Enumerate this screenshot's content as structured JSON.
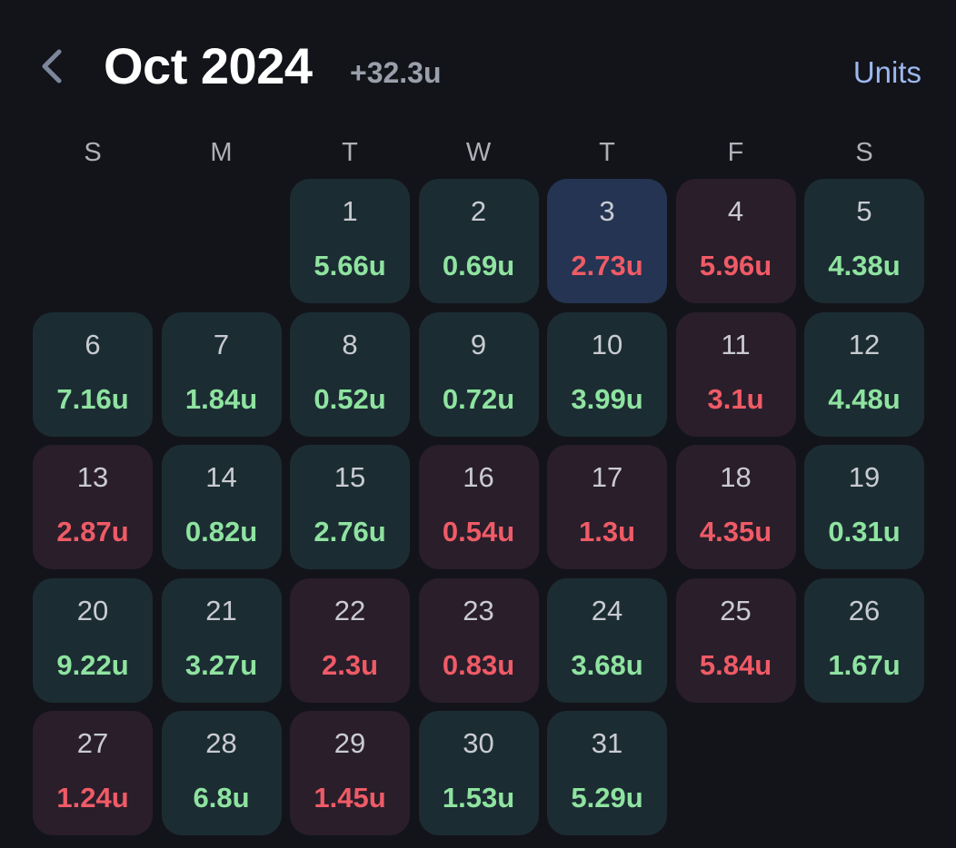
{
  "header": {
    "back_icon": "chevron-left-icon",
    "title": "Oct 2024",
    "total": "+32.3u",
    "units_label": "Units"
  },
  "colors": {
    "background": "#13141a",
    "win_cell": "#1b2d33",
    "loss_cell": "#2a1e2b",
    "today_cell": "#243452",
    "win_text": "#8fe3a0",
    "loss_text": "#ef5b66",
    "accent": "#9cb8f0"
  },
  "weekdays": [
    "S",
    "M",
    "T",
    "W",
    "T",
    "F",
    "S"
  ],
  "calendar": {
    "first_weekday_index": 2,
    "days": [
      {
        "day": "1",
        "value": "5.66u",
        "result": "win"
      },
      {
        "day": "2",
        "value": "0.69u",
        "result": "win"
      },
      {
        "day": "3",
        "value": "2.73u",
        "result": "loss",
        "today": true
      },
      {
        "day": "4",
        "value": "5.96u",
        "result": "loss"
      },
      {
        "day": "5",
        "value": "4.38u",
        "result": "win"
      },
      {
        "day": "6",
        "value": "7.16u",
        "result": "win"
      },
      {
        "day": "7",
        "value": "1.84u",
        "result": "win"
      },
      {
        "day": "8",
        "value": "0.52u",
        "result": "win"
      },
      {
        "day": "9",
        "value": "0.72u",
        "result": "win"
      },
      {
        "day": "10",
        "value": "3.99u",
        "result": "win"
      },
      {
        "day": "11",
        "value": "3.1u",
        "result": "loss"
      },
      {
        "day": "12",
        "value": "4.48u",
        "result": "win"
      },
      {
        "day": "13",
        "value": "2.87u",
        "result": "loss"
      },
      {
        "day": "14",
        "value": "0.82u",
        "result": "win"
      },
      {
        "day": "15",
        "value": "2.76u",
        "result": "win"
      },
      {
        "day": "16",
        "value": "0.54u",
        "result": "loss"
      },
      {
        "day": "17",
        "value": "1.3u",
        "result": "loss"
      },
      {
        "day": "18",
        "value": "4.35u",
        "result": "loss"
      },
      {
        "day": "19",
        "value": "0.31u",
        "result": "win"
      },
      {
        "day": "20",
        "value": "9.22u",
        "result": "win"
      },
      {
        "day": "21",
        "value": "3.27u",
        "result": "win"
      },
      {
        "day": "22",
        "value": "2.3u",
        "result": "loss"
      },
      {
        "day": "23",
        "value": "0.83u",
        "result": "loss"
      },
      {
        "day": "24",
        "value": "3.68u",
        "result": "win"
      },
      {
        "day": "25",
        "value": "5.84u",
        "result": "loss"
      },
      {
        "day": "26",
        "value": "1.67u",
        "result": "win"
      },
      {
        "day": "27",
        "value": "1.24u",
        "result": "loss"
      },
      {
        "day": "28",
        "value": "6.8u",
        "result": "win"
      },
      {
        "day": "29",
        "value": "1.45u",
        "result": "loss"
      },
      {
        "day": "30",
        "value": "1.53u",
        "result": "win"
      },
      {
        "day": "31",
        "value": "5.29u",
        "result": "win"
      }
    ]
  }
}
